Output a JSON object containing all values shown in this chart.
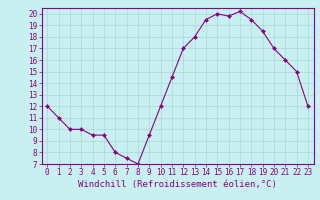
{
  "x": [
    0,
    1,
    2,
    3,
    4,
    5,
    6,
    7,
    8,
    9,
    10,
    11,
    12,
    13,
    14,
    15,
    16,
    17,
    18,
    19,
    20,
    21,
    22,
    23
  ],
  "y": [
    12,
    11,
    10,
    10,
    9.5,
    9.5,
    8,
    7.5,
    7,
    9.5,
    12,
    14.5,
    17,
    18,
    19.5,
    20,
    19.8,
    20.2,
    19.5,
    18.5,
    17,
    16,
    15,
    12
  ],
  "line_color": "#880088",
  "marker": "D",
  "marker_size": 2.0,
  "bg_color": "#c8f0f0",
  "grid_color": "#a8d8d8",
  "xlabel": "Windchill (Refroidissement éolien,°C)",
  "xlim": [
    -0.5,
    23.5
  ],
  "ylim": [
    7,
    20.5
  ],
  "yticks": [
    7,
    8,
    9,
    10,
    11,
    12,
    13,
    14,
    15,
    16,
    17,
    18,
    19,
    20
  ],
  "xticks": [
    0,
    1,
    2,
    3,
    4,
    5,
    6,
    7,
    8,
    9,
    10,
    11,
    12,
    13,
    14,
    15,
    16,
    17,
    18,
    19,
    20,
    21,
    22,
    23
  ],
  "tick_fontsize": 5.5,
  "xlabel_fontsize": 6.5,
  "tick_color": "#880088",
  "spine_color": "#880088",
  "linewidth": 0.8
}
